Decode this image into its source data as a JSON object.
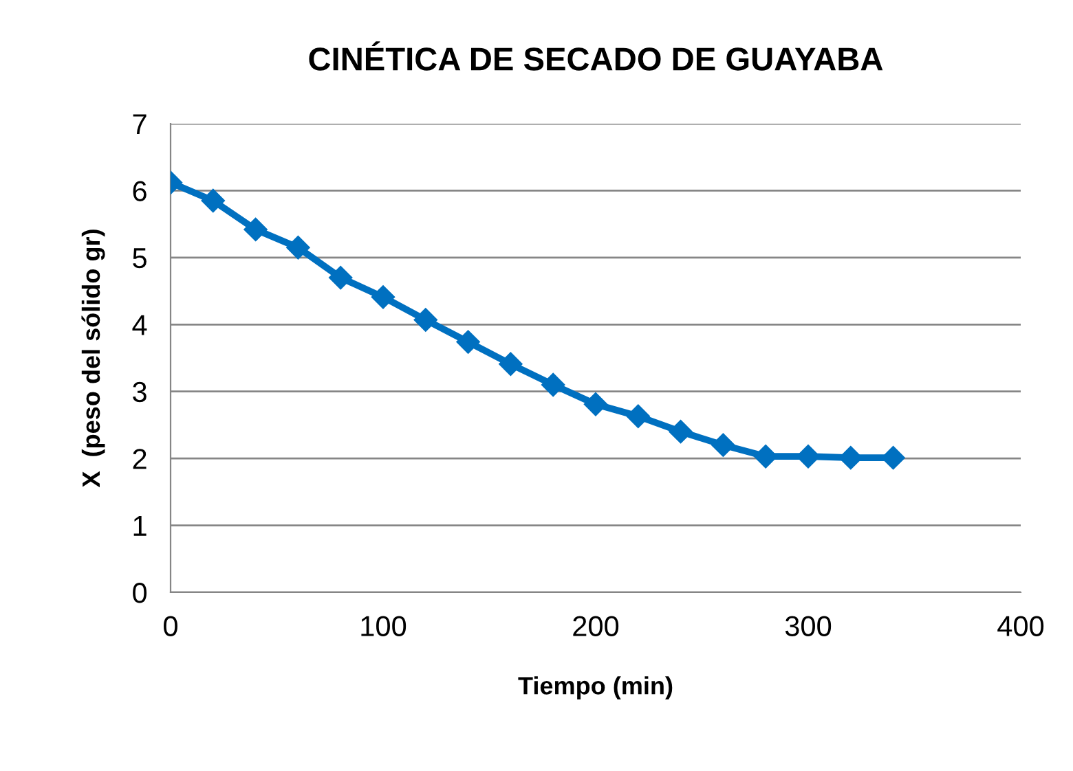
{
  "chart_data": {
    "type": "line",
    "title": "CINÉTICA DE SECADO DE GUAYABA",
    "xlabel": "Tiempo (min)",
    "ylabel": "X  (peso del sólido gr)",
    "x": [
      0,
      20,
      40,
      60,
      80,
      100,
      120,
      140,
      160,
      180,
      200,
      220,
      240,
      260,
      280,
      300,
      320,
      340
    ],
    "series": [
      {
        "color": "#0070c0",
        "values": [
          6.12,
          5.85,
          5.42,
          5.15,
          4.7,
          4.41,
          4.07,
          3.74,
          3.41,
          3.1,
          2.81,
          2.63,
          2.4,
          2.2,
          2.03,
          2.03,
          2.01,
          2.01
        ]
      }
    ],
    "xlim": [
      0,
      400
    ],
    "xticks": [
      0,
      100,
      200,
      300,
      400
    ],
    "ylim": [
      0,
      7
    ],
    "yticks": [
      0,
      1,
      2,
      3,
      4,
      5,
      6,
      7
    ],
    "grid": "y",
    "legend": false,
    "marker": "diamond",
    "line_style": "solid"
  }
}
